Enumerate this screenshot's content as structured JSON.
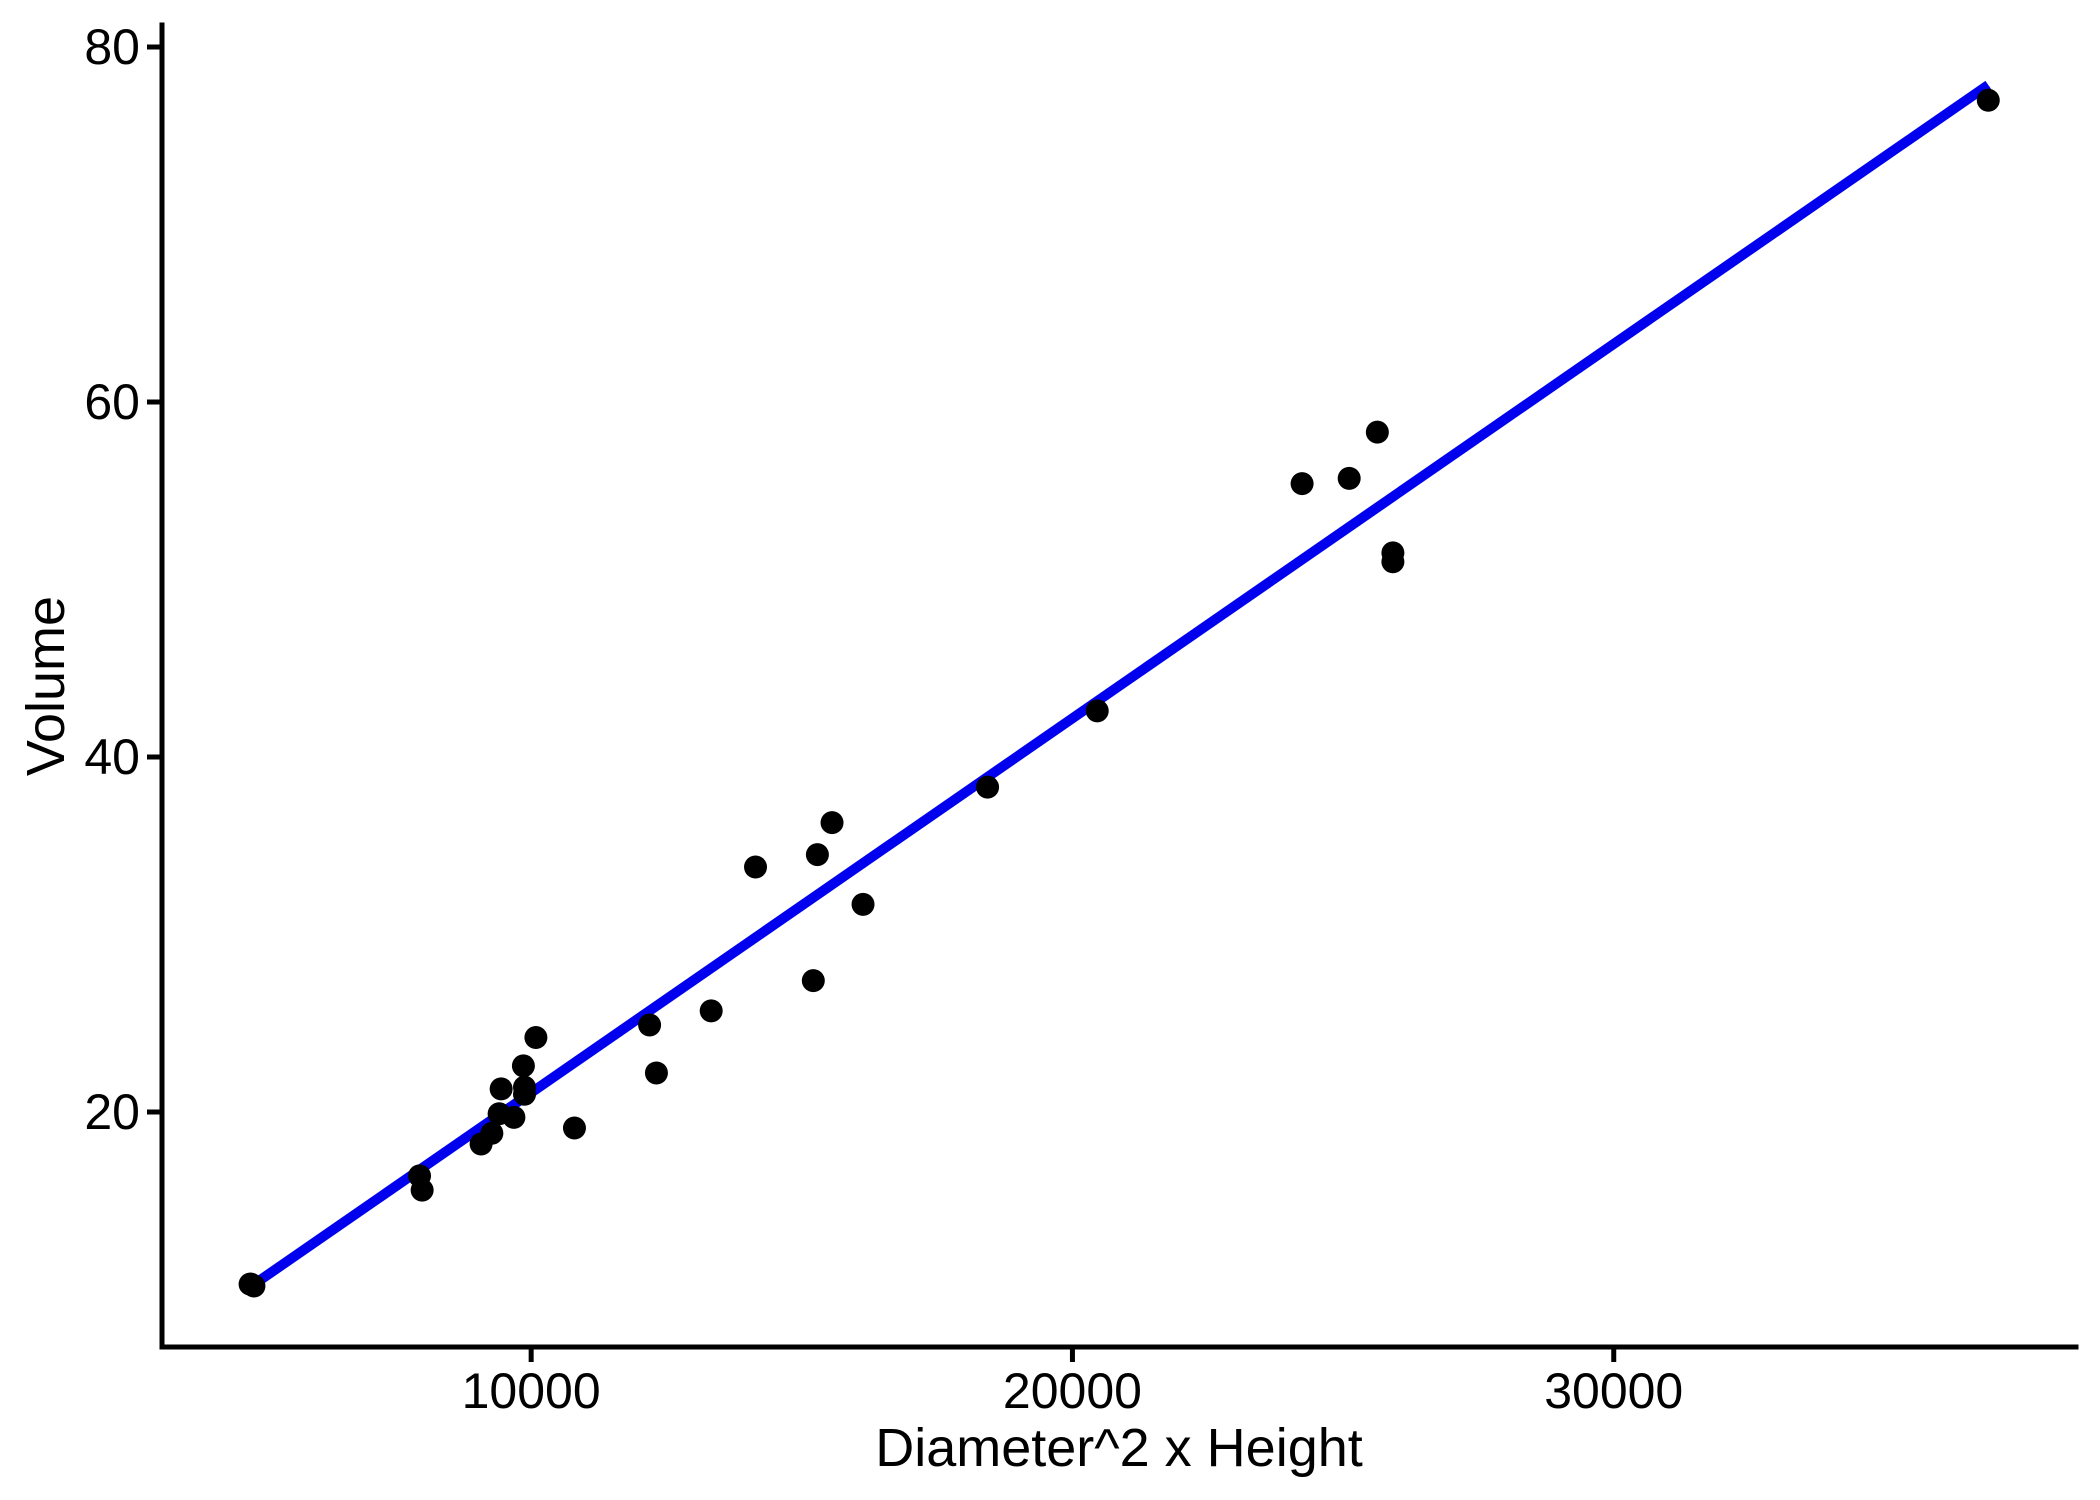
{
  "chart_data": {
    "type": "scatter",
    "title": "",
    "xlabel": "Diameter^2 x Height",
    "ylabel": "Volume",
    "x_ticks": [
      {
        "value": 10000,
        "label": "10000"
      },
      {
        "value": 20000,
        "label": "20000"
      },
      {
        "value": 30000,
        "label": "30000"
      }
    ],
    "y_ticks": [
      {
        "value": 20,
        "label": "20"
      },
      {
        "value": 40,
        "label": "40"
      },
      {
        "value": 60,
        "label": "60"
      },
      {
        "value": 80,
        "label": "80"
      }
    ],
    "x_range": [
      3180,
      38540
    ],
    "y_range": [
      6.76,
      81.24
    ],
    "grid": "off",
    "legend": "none",
    "points": [
      {
        "x": 4807.4,
        "y": 10.3
      },
      {
        "x": 4822.3,
        "y": 10.3
      },
      {
        "x": 4878.7,
        "y": 10.2
      },
      {
        "x": 7938.0,
        "y": 16.4
      },
      {
        "x": 7986.0,
        "y": 15.6
      },
      {
        "x": 9075.0,
        "y": 18.2
      },
      {
        "x": 9273.7,
        "y": 18.8
      },
      {
        "x": 9408.0,
        "y": 19.9
      },
      {
        "x": 9445.4,
        "y": 21.3
      },
      {
        "x": 9681.1,
        "y": 19.7
      },
      {
        "x": 9856.8,
        "y": 22.6
      },
      {
        "x": 9877.0,
        "y": 21.0
      },
      {
        "x": 9877.0,
        "y": 21.4
      },
      {
        "x": 10087.5,
        "y": 24.2
      },
      {
        "x": 10800.0,
        "y": 19.1
      },
      {
        "x": 12188.2,
        "y": 24.9
      },
      {
        "x": 12314.3,
        "y": 22.2
      },
      {
        "x": 13326.0,
        "y": 25.7
      },
      {
        "x": 14144.9,
        "y": 33.8
      },
      {
        "x": 15212.5,
        "y": 27.4
      },
      {
        "x": 15288.0,
        "y": 34.5
      },
      {
        "x": 15558.5,
        "y": 36.3
      },
      {
        "x": 16131.2,
        "y": 31.7
      },
      {
        "x": 18432.0,
        "y": 38.3
      },
      {
        "x": 20458.1,
        "y": 42.6
      },
      {
        "x": 24242.5,
        "y": 55.4
      },
      {
        "x": 25112.5,
        "y": 55.7
      },
      {
        "x": 25632.8,
        "y": 58.3
      },
      {
        "x": 25920.0,
        "y": 51.0
      },
      {
        "x": 25920.0,
        "y": 51.5
      },
      {
        "x": 36919.3,
        "y": 77.0
      }
    ],
    "trend_line": {
      "slope": 0.002109,
      "intercept": 0,
      "x_start": 4807.4,
      "x_end": 36919.3,
      "color": "#0000EE",
      "width": 10
    },
    "point_color": "#000000",
    "point_radius": 11.5,
    "axis_color": "#000000",
    "axis_width": 5,
    "tick_length": 15
  }
}
